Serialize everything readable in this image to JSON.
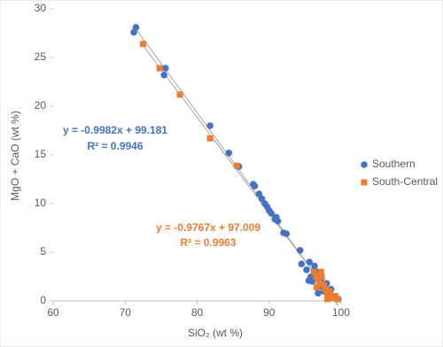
{
  "chart_data": {
    "type": "scatter",
    "x_label": "SiO₂ (wt %)",
    "y_label": "MgO + CaO (wt %)",
    "xlim": [
      60,
      100
    ],
    "xticks": [
      60,
      70,
      80,
      90,
      100
    ],
    "ylim": [
      0,
      30
    ],
    "yticks": [
      0,
      5,
      10,
      15,
      20,
      25,
      30
    ],
    "legend": "right",
    "series": [
      {
        "name": "Southern",
        "color": "#4472c4",
        "marker": "circle",
        "x": [
          71.5,
          71.2,
          75.6,
          75.4,
          81.8,
          84.4,
          85.8,
          87.8,
          88.0,
          88.6,
          89.0,
          89.4,
          89.7,
          90.0,
          90.3,
          90.8,
          91.0,
          91.2,
          92.0,
          92.4,
          94.3,
          94.5,
          95.2,
          95.6,
          95.8,
          96.0,
          96.3,
          96.6,
          97.0,
          97.2,
          97.6,
          98.0,
          98.3,
          98.6,
          98.9,
          99.3,
          99.6,
          95.5,
          96.8
        ],
        "y": [
          28.1,
          27.6,
          23.9,
          23.2,
          18.0,
          15.2,
          13.8,
          12.0,
          11.8,
          11.0,
          10.5,
          10.0,
          9.7,
          9.3,
          9.0,
          8.4,
          8.6,
          8.2,
          7.0,
          6.9,
          5.2,
          3.8,
          3.2,
          4.0,
          2.5,
          2.0,
          3.6,
          3.0,
          1.5,
          2.2,
          1.0,
          1.8,
          0.8,
          1.2,
          0.5,
          0.3,
          0.2,
          2.1,
          0.8
        ],
        "equation": "y = -0.9982x + 99.181",
        "r2_label": "R² = 0.9946"
      },
      {
        "name": "South-Central",
        "color": "#ed7d31",
        "marker": "square",
        "x": [
          72.5,
          74.8,
          77.6,
          81.8,
          85.5,
          96.2,
          96.5,
          96.8,
          97.0,
          97.3,
          97.6,
          97.8,
          98.0,
          98.2,
          98.4,
          98.6,
          98.9,
          99.2,
          99.5,
          97.2,
          96.6,
          98.1
        ],
        "y": [
          26.4,
          23.9,
          21.2,
          16.7,
          13.9,
          3.0,
          2.6,
          2.2,
          1.8,
          2.5,
          1.6,
          1.2,
          0.9,
          0.6,
          1.0,
          0.4,
          0.3,
          0.5,
          0.2,
          3.0,
          1.4,
          0.2
        ],
        "equation": "y = -0.9767x + 97.009",
        "r2_label": "R² = 0.9963"
      }
    ]
  }
}
